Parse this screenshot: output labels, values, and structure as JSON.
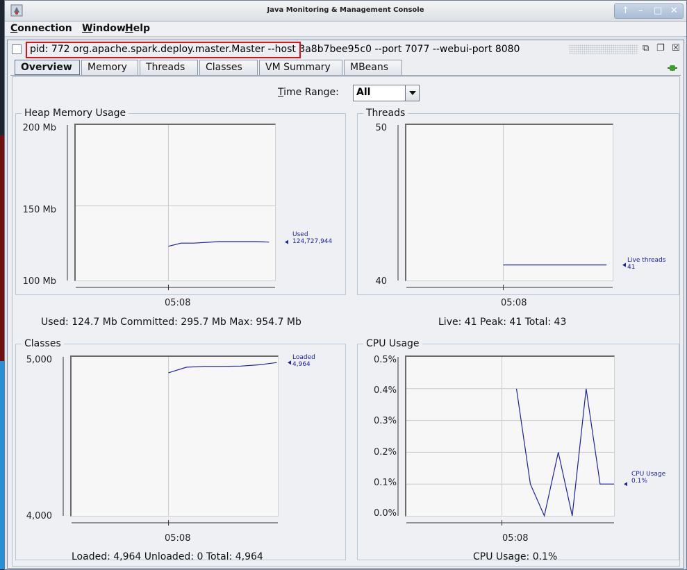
{
  "window": {
    "title": "Java Monitoring & Management Console",
    "controls": [
      "↑",
      "–",
      "□",
      "✕"
    ]
  },
  "menubar": {
    "items": [
      {
        "underline": "C",
        "rest": "onnection"
      },
      {
        "underline": "W",
        "rest": "indow"
      },
      {
        "underline": "H",
        "rest": "elp"
      }
    ]
  },
  "inner_frame": {
    "pid": "pid: 772 org.apache.spark.deploy.master.Master",
    "args": " --host 3a8b7bee95c0 --port 7077 --webui-port 8080"
  },
  "tabs": [
    "Overview",
    "Memory",
    "Threads",
    "Classes",
    "VM Summary",
    "MBeans"
  ],
  "active_tab": "Overview",
  "time_range": {
    "label_underline": "T",
    "label_rest": "ime Range:",
    "value": "All"
  },
  "colors": {
    "series": "#1c21a8",
    "highlight": "#e0101a"
  },
  "panels": {
    "heap": {
      "title": "Heap Memory Usage",
      "yticks": [
        "200 Mb",
        "150 Mb",
        "100 Mb"
      ],
      "xtick": "05:08",
      "series_name": "Used",
      "series_value": "124,727,944",
      "summary": "Used: 124.7 Mb   Committed: 295.7 Mb   Max: 954.7 Mb"
    },
    "threads": {
      "title": "Threads",
      "yticks": [
        "50",
        "40"
      ],
      "xtick": "05:08",
      "series_name": "Live threads",
      "series_value": "41",
      "summary": "Live: 41   Peak: 41   Total: 43"
    },
    "classes": {
      "title": "Classes",
      "yticks": [
        "5,000",
        "4,000"
      ],
      "xtick": "05:08",
      "series_name": "Loaded",
      "series_value": "4,964",
      "summary": "Loaded: 4,964   Unloaded: 0   Total: 4,964"
    },
    "cpu": {
      "title": "CPU Usage",
      "yticks": [
        "0.5%",
        "0.4%",
        "0.3%",
        "0.2%",
        "0.1%",
        "0.0%"
      ],
      "xtick": "05:08",
      "series_name": "CPU Usage",
      "series_value": "0.1%",
      "summary": "CPU Usage: 0.1%"
    }
  },
  "chart_data": [
    {
      "type": "line",
      "title": "Heap Memory Usage",
      "ylim": [
        100,
        200
      ],
      "unit": "Mb",
      "series": [
        {
          "name": "Used",
          "values": [
            122,
            124,
            124,
            124.5,
            125,
            125,
            125,
            125,
            124.7
          ]
        }
      ]
    },
    {
      "type": "line",
      "title": "Threads",
      "ylim": [
        40,
        50
      ],
      "series": [
        {
          "name": "Live threads",
          "values": [
            41,
            41,
            41,
            41,
            41
          ]
        }
      ]
    },
    {
      "type": "line",
      "title": "Classes",
      "ylim": [
        4000,
        5000
      ],
      "series": [
        {
          "name": "Loaded",
          "values": [
            4900,
            4935,
            4940,
            4940,
            4942,
            4950,
            4964
          ]
        }
      ]
    },
    {
      "type": "line",
      "title": "CPU Usage",
      "ylim": [
        0,
        0.5
      ],
      "unit": "%",
      "series": [
        {
          "name": "CPU Usage",
          "values": [
            0.4,
            0.1,
            0.0,
            0.2,
            0.0,
            0.4,
            0.1,
            0.1
          ]
        }
      ]
    }
  ]
}
